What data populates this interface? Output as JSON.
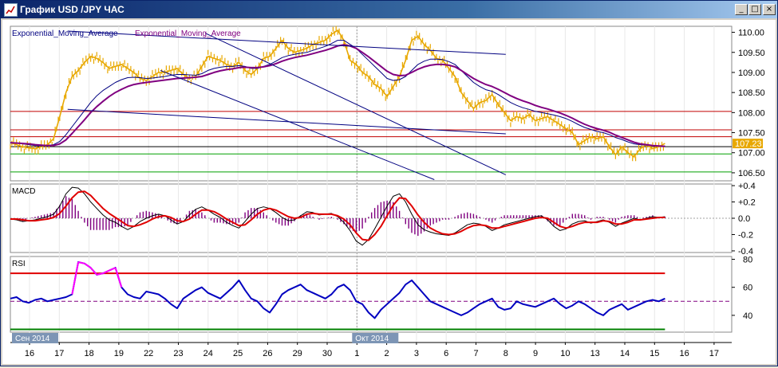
{
  "window": {
    "title": "График USD /JPY ЧАС",
    "minimize_label": "_",
    "maximize_label": "□",
    "close_label": "×"
  },
  "chart_data": [
    {
      "type": "line",
      "panel": "price",
      "legend": [
        "Exponential_Moving_Average",
        "Exponential_Moving_Average"
      ],
      "ylim": [
        106.3,
        110.15
      ],
      "yticks": [
        "110.00",
        "109.50",
        "109.00",
        "108.50",
        "108.00",
        "107.50",
        "107.00",
        "106.50"
      ],
      "current_price_label": "107.23",
      "current_price": 107.23,
      "series": [
        {
          "role": "price",
          "color": "#e8a800",
          "values": [
            107.25,
            107.2,
            107.15,
            107.12,
            107.1,
            107.15,
            107.2,
            107.35,
            107.9,
            108.5,
            108.9,
            109.05,
            109.25,
            109.4,
            109.35,
            109.25,
            109.1,
            109.15,
            109.2,
            109.1,
            109.0,
            108.85,
            108.8,
            108.9,
            109.0,
            109.0,
            109.05,
            109.1,
            108.95,
            108.85,
            108.9,
            109.15,
            109.4,
            109.35,
            109.3,
            109.2,
            109.15,
            109.25,
            109.05,
            108.95,
            109.1,
            109.35,
            109.4,
            109.6,
            109.8,
            109.6,
            109.5,
            109.55,
            109.6,
            109.7,
            109.75,
            109.8,
            109.95,
            110.05,
            109.8,
            109.3,
            109.2,
            109.0,
            108.9,
            108.7,
            108.6,
            108.4,
            108.65,
            108.9,
            109.3,
            109.8,
            109.9,
            109.7,
            109.55,
            109.35,
            109.3,
            109.1,
            108.9,
            108.5,
            108.3,
            108.1,
            108.25,
            108.3,
            108.45,
            108.2,
            108.0,
            107.8,
            107.9,
            107.85,
            107.95,
            107.8,
            107.85,
            107.9,
            107.8,
            107.7,
            107.6,
            107.5,
            107.2,
            107.3,
            107.4,
            107.35,
            107.4,
            107.15,
            106.95,
            107.15,
            107.0,
            106.9,
            107.1,
            107.2,
            107.1,
            107.15,
            107.23
          ]
        },
        {
          "role": "ema-fast",
          "color": "#000080",
          "values": [
            107.25,
            107.24,
            107.22,
            107.2,
            107.18,
            107.17,
            107.18,
            107.2,
            107.28,
            107.45,
            107.65,
            107.85,
            108.05,
            108.25,
            108.42,
            108.55,
            108.65,
            108.75,
            108.82,
            108.87,
            108.88,
            108.87,
            108.85,
            108.86,
            108.88,
            108.9,
            108.93,
            108.95,
            108.95,
            108.94,
            108.93,
            108.97,
            109.05,
            109.1,
            109.13,
            109.15,
            109.15,
            109.17,
            109.15,
            109.1,
            109.1,
            109.15,
            109.2,
            109.28,
            109.37,
            109.42,
            109.45,
            109.48,
            109.5,
            109.55,
            109.6,
            109.65,
            109.72,
            109.8,
            109.8,
            109.7,
            109.6,
            109.45,
            109.3,
            109.15,
            109.0,
            108.85,
            108.8,
            108.82,
            108.9,
            109.05,
            109.2,
            109.28,
            109.33,
            109.33,
            109.32,
            109.27,
            109.2,
            109.05,
            108.9,
            108.75,
            108.65,
            108.57,
            108.53,
            108.45,
            108.35,
            108.25,
            108.18,
            108.12,
            108.08,
            108.03,
            108.0,
            107.97,
            107.94,
            107.9,
            107.85,
            107.78,
            107.7,
            107.63,
            107.58,
            107.53,
            107.5,
            107.45,
            107.38,
            107.33,
            107.27,
            107.22,
            107.2,
            107.19,
            107.18,
            107.17,
            107.17
          ]
        },
        {
          "role": "ema-slow",
          "color": "#800080",
          "values": [
            107.25,
            107.24,
            107.23,
            107.22,
            107.2,
            107.19,
            107.18,
            107.18,
            107.22,
            107.32,
            107.48,
            107.65,
            107.82,
            108.0,
            108.15,
            108.28,
            108.4,
            108.5,
            108.58,
            108.65,
            108.7,
            108.73,
            108.75,
            108.77,
            108.79,
            108.81,
            108.83,
            108.85,
            108.86,
            108.87,
            108.88,
            108.9,
            108.95,
            109.0,
            109.04,
            109.07,
            109.09,
            109.12,
            109.13,
            109.12,
            109.12,
            109.14,
            109.17,
            109.22,
            109.28,
            109.33,
            109.37,
            109.4,
            109.43,
            109.47,
            109.51,
            109.55,
            109.6,
            109.66,
            109.69,
            109.66,
            109.6,
            109.5,
            109.39,
            109.27,
            109.15,
            109.03,
            108.95,
            108.92,
            108.93,
            109.0,
            109.08,
            109.14,
            109.18,
            109.2,
            109.2,
            109.18,
            109.14,
            109.05,
            108.95,
            108.85,
            108.77,
            108.7,
            108.65,
            108.58,
            108.5,
            108.42,
            108.35,
            108.29,
            108.24,
            108.18,
            108.13,
            108.09,
            108.04,
            107.99,
            107.93,
            107.86,
            107.78,
            107.71,
            107.65,
            107.6,
            107.56,
            107.51,
            107.44,
            107.38,
            107.32,
            107.26,
            107.22,
            107.2,
            107.18,
            107.17,
            107.16
          ]
        }
      ],
      "horizontal_levels": [
        {
          "value": 108.03,
          "color": "#c00000"
        },
        {
          "value": 107.57,
          "color": "#c00000"
        },
        {
          "value": 107.4,
          "color": "#c00000"
        },
        {
          "value": 107.15,
          "color": "#000000"
        },
        {
          "value": 106.97,
          "color": "#00a000"
        },
        {
          "value": 106.52,
          "color": "#00a000"
        }
      ],
      "trend_lines": [
        {
          "from": [
            1.28,
            110.03
          ],
          "to": [
            16.0,
            109.45
          ],
          "color": "#000080"
        },
        {
          "from": [
            1.28,
            108.08
          ],
          "to": [
            16.0,
            107.47
          ],
          "color": "#000080"
        },
        {
          "from": [
            5.9,
            109.98
          ],
          "to": [
            16.0,
            106.45
          ],
          "color": "#000080"
        },
        {
          "from": [
            4.4,
            109.05
          ],
          "to": [
            13.6,
            106.33
          ],
          "color": "#000080"
        }
      ]
    },
    {
      "type": "line",
      "panel": "macd",
      "legend": [
        "MACD"
      ],
      "ylim": [
        -0.42,
        0.42
      ],
      "yticks": [
        "+0.4",
        "+0.2",
        "0.0",
        "-0.2",
        "-0.4"
      ],
      "series": [
        {
          "role": "macd",
          "color": "#000000",
          "values": [
            -0.01,
            -0.02,
            -0.04,
            -0.03,
            -0.02,
            0.0,
            0.02,
            0.05,
            0.15,
            0.3,
            0.38,
            0.37,
            0.3,
            0.2,
            0.12,
            0.04,
            -0.02,
            -0.05,
            -0.1,
            -0.14,
            -0.1,
            -0.04,
            0.0,
            0.03,
            0.05,
            0.03,
            -0.02,
            -0.07,
            -0.04,
            0.04,
            0.11,
            0.14,
            0.1,
            0.05,
            0.01,
            -0.05,
            -0.09,
            -0.12,
            -0.04,
            0.05,
            0.12,
            0.14,
            0.12,
            0.07,
            0.01,
            -0.03,
            -0.02,
            0.03,
            0.08,
            0.07,
            0.04,
            0.05,
            0.06,
            0.02,
            -0.05,
            -0.15,
            -0.28,
            -0.33,
            -0.26,
            -0.13,
            0.01,
            0.15,
            0.27,
            0.3,
            0.2,
            0.05,
            -0.08,
            -0.14,
            -0.17,
            -0.19,
            -0.2,
            -0.21,
            -0.18,
            -0.13,
            -0.08,
            -0.06,
            -0.07,
            -0.1,
            -0.15,
            -0.12,
            -0.08,
            -0.06,
            -0.04,
            -0.02,
            0.0,
            0.02,
            0.03,
            -0.02,
            -0.1,
            -0.15,
            -0.13,
            -0.07,
            -0.04,
            -0.03,
            -0.06,
            -0.04,
            -0.02,
            -0.05,
            -0.1,
            -0.06,
            -0.03,
            0.0,
            -0.02,
            0.0,
            0.02,
            0.01,
            0.02
          ]
        },
        {
          "role": "signal",
          "color": "#e00000",
          "values": [
            -0.01,
            -0.01,
            -0.02,
            -0.03,
            -0.03,
            -0.02,
            -0.01,
            0.01,
            0.06,
            0.15,
            0.25,
            0.32,
            0.33,
            0.28,
            0.2,
            0.12,
            0.06,
            0.01,
            -0.04,
            -0.09,
            -0.1,
            -0.08,
            -0.05,
            -0.01,
            0.02,
            0.03,
            0.01,
            -0.03,
            -0.04,
            -0.01,
            0.05,
            0.1,
            0.1,
            0.08,
            0.04,
            -0.01,
            -0.05,
            -0.09,
            -0.08,
            -0.02,
            0.05,
            0.1,
            0.12,
            0.1,
            0.06,
            0.02,
            0.0,
            0.01,
            0.05,
            0.06,
            0.05,
            0.05,
            0.05,
            0.03,
            -0.01,
            -0.08,
            -0.18,
            -0.26,
            -0.27,
            -0.2,
            -0.1,
            0.03,
            0.16,
            0.25,
            0.24,
            0.15,
            0.04,
            -0.05,
            -0.12,
            -0.16,
            -0.19,
            -0.2,
            -0.19,
            -0.16,
            -0.12,
            -0.09,
            -0.08,
            -0.09,
            -0.12,
            -0.12,
            -0.1,
            -0.08,
            -0.06,
            -0.04,
            -0.02,
            0.0,
            0.01,
            0.0,
            -0.05,
            -0.1,
            -0.12,
            -0.1,
            -0.07,
            -0.05,
            -0.05,
            -0.05,
            -0.03,
            -0.04,
            -0.07,
            -0.07,
            -0.05,
            -0.02,
            -0.02,
            -0.01,
            0.0,
            0.01,
            0.01
          ]
        }
      ],
      "histogram_color": "#800080"
    },
    {
      "type": "line",
      "panel": "rsi",
      "legend": [
        "RSI"
      ],
      "ylim": [
        28,
        82
      ],
      "yticks": [
        "80",
        "60",
        "40"
      ],
      "levels": [
        {
          "value": 70,
          "color": "#e00000"
        },
        {
          "value": 50,
          "color": "#800080",
          "dashed": true
        },
        {
          "value": 30,
          "color": "#008000"
        }
      ],
      "series": [
        {
          "role": "rsi",
          "color": "#0000c0",
          "values": [
            52,
            53,
            50,
            49,
            51,
            52,
            50,
            51,
            52,
            53,
            55,
            78,
            77,
            74,
            69,
            70,
            72,
            74,
            60,
            55,
            53,
            52,
            57,
            56,
            55,
            52,
            48,
            45,
            52,
            55,
            58,
            60,
            56,
            54,
            52,
            56,
            60,
            65,
            58,
            52,
            50,
            45,
            42,
            48,
            55,
            58,
            60,
            62,
            58,
            56,
            54,
            52,
            55,
            60,
            62,
            58,
            50,
            48,
            42,
            38,
            44,
            48,
            52,
            56,
            62,
            65,
            60,
            55,
            50,
            48,
            46,
            44,
            42,
            40,
            42,
            45,
            48,
            50,
            52,
            46,
            44,
            45,
            50,
            48,
            47,
            46,
            48,
            50,
            52,
            48,
            45,
            47,
            50,
            48,
            45,
            42,
            40,
            44,
            46,
            48,
            44,
            46,
            48,
            50,
            51,
            50,
            52
          ],
          "overbought_color": "#ff00ff"
        }
      ]
    }
  ],
  "x_axis": {
    "labels": [
      "16",
      "17",
      "18",
      "19",
      "22",
      "23",
      "24",
      "25",
      "26",
      "29",
      "30",
      "1",
      "2",
      "3",
      "6",
      "7",
      "8",
      "9",
      "10",
      "13",
      "14",
      "15",
      "16",
      "17"
    ],
    "label_positions": [
      0,
      1,
      2,
      3,
      4,
      5,
      6,
      7,
      8,
      9,
      10,
      11,
      12,
      13,
      14,
      15,
      16,
      17,
      18,
      19,
      20,
      21,
      22,
      23
    ],
    "month_markers": [
      {
        "text": "Сен 2014",
        "position": 0
      },
      {
        "text": "Окт 2014",
        "position": 11
      }
    ],
    "data_end_position": 21.35
  }
}
